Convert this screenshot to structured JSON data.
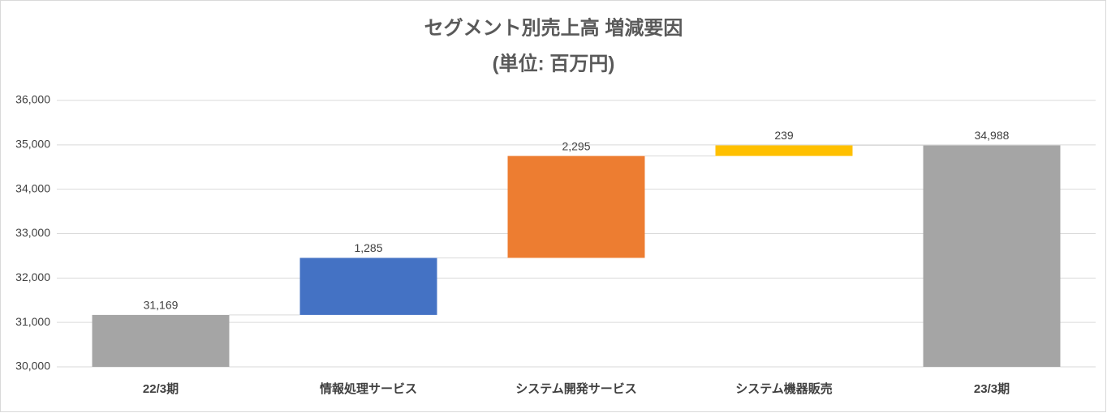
{
  "chart_data": {
    "type": "waterfall",
    "title": "セグメント別売上高 増減要因",
    "subtitle": "(単位: 百万円)",
    "categories": [
      "22/3期",
      "情報処理サービス",
      "システム開発サービス",
      "システム機器販売",
      "23/3期"
    ],
    "values": [
      31169,
      1285,
      2295,
      239,
      34988
    ],
    "value_labels": [
      "31,169",
      "1,285",
      "2,295",
      "239",
      "34,988"
    ],
    "totals": [
      true,
      false,
      false,
      false,
      true
    ],
    "colors": [
      "#a5a5a5",
      "#4472c4",
      "#ed7d31",
      "#ffc000",
      "#a5a5a5"
    ],
    "ylim": [
      30000,
      36000
    ],
    "yticks": [
      {
        "value": 30000,
        "label": "30,000"
      },
      {
        "value": 31000,
        "label": "31,000"
      },
      {
        "value": 32000,
        "label": "32,000"
      },
      {
        "value": 33000,
        "label": "33,000"
      },
      {
        "value": 34000,
        "label": "34,000"
      },
      {
        "value": 35000,
        "label": "35,000"
      },
      {
        "value": 36000,
        "label": "36,000"
      }
    ],
    "grid": true
  }
}
